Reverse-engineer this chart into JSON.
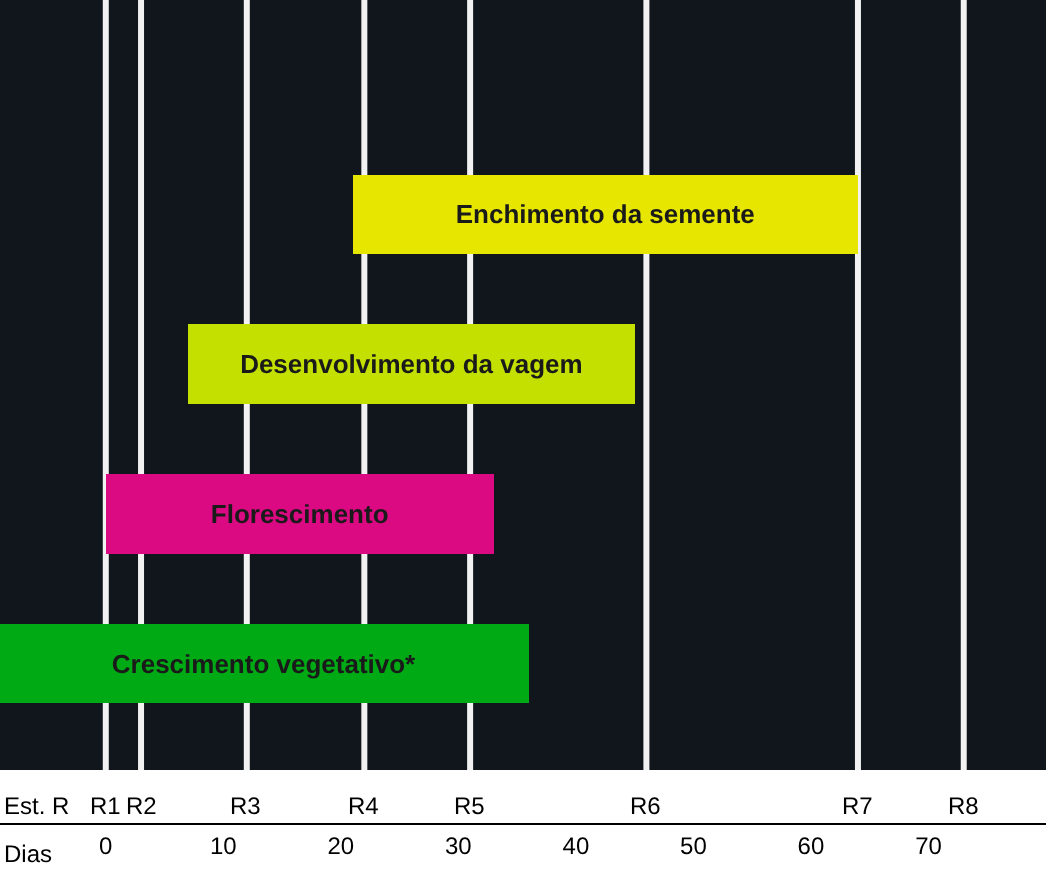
{
  "chart_data": {
    "type": "bar",
    "orientation": "horizontal",
    "categories": [
      "Enchimento da semente",
      "Desenvolvimento da vagem",
      "Florescimento",
      "Crescimento vegetativo*"
    ],
    "base": [
      21,
      7,
      0,
      -9
    ],
    "values": [
      43,
      38,
      33,
      45
    ],
    "colors": [
      "#e6e600",
      "#c3e000",
      "#dc0a82",
      "#00aa14"
    ],
    "xlabel": "Dias",
    "annotations": [
      "Est. R"
    ],
    "xlim": [
      -9,
      80
    ],
    "xticks": [
      0,
      10,
      20,
      30,
      40,
      50,
      60,
      70
    ],
    "ref_lines": [
      {
        "axis": "x",
        "value": 0,
        "label": "R1",
        "color": "#f2f2f2"
      },
      {
        "axis": "x",
        "value": 3,
        "label": "R2",
        "color": "#f2f2f2"
      },
      {
        "axis": "x",
        "value": 12,
        "label": "R3",
        "color": "#f2f2f2"
      },
      {
        "axis": "x",
        "value": 22,
        "label": "R4",
        "color": "#f2f2f2"
      },
      {
        "axis": "x",
        "value": 31,
        "label": "R5",
        "color": "#f2f2f2"
      },
      {
        "axis": "x",
        "value": 46,
        "label": "R6",
        "color": "#f2f2f2"
      },
      {
        "axis": "x",
        "value": 64,
        "label": "R7",
        "color": "#f2f2f2"
      },
      {
        "axis": "x",
        "value": 73,
        "label": "R8",
        "color": "#f2f2f2"
      }
    ],
    "tick_labels": "x"
  }
}
